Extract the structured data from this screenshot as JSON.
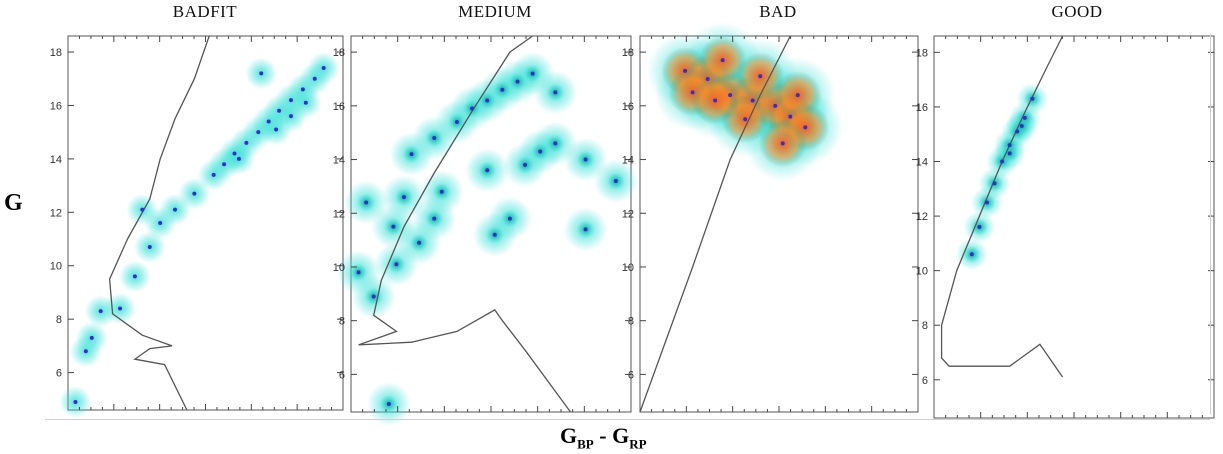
{
  "chart_data": {
    "type": "scatter",
    "ylabel": "G",
    "xlabel_main": "G",
    "xlabel_sub1": "BP",
    "xlabel_sep": " - ",
    "xlabel_sub2": "RP",
    "ylim": [
      18.6,
      4.6
    ],
    "yticks": [
      "6",
      "8",
      "10",
      "12",
      "14",
      "16",
      "18"
    ],
    "y_inverted": true,
    "colors": {
      "density_low": "#35e0d6",
      "density_mid": "#0aa39a",
      "density_high": "#ff5a1a",
      "points": "#3a2bd0",
      "isochrone": "#555555"
    },
    "panels": [
      {
        "title": "BADFIT",
        "points": [
          [
            0.05,
            4.9
          ],
          [
            0.12,
            6.8
          ],
          [
            0.16,
            7.3
          ],
          [
            0.22,
            8.3
          ],
          [
            0.35,
            8.4
          ],
          [
            0.45,
            9.6
          ],
          [
            0.5,
            12.1
          ],
          [
            0.55,
            10.7
          ],
          [
            0.62,
            11.6
          ],
          [
            0.72,
            12.1
          ],
          [
            0.85,
            12.7
          ],
          [
            0.98,
            13.4
          ],
          [
            1.05,
            13.8
          ],
          [
            1.12,
            14.2
          ],
          [
            1.2,
            14.6
          ],
          [
            1.28,
            15.0
          ],
          [
            1.35,
            15.4
          ],
          [
            1.42,
            15.8
          ],
          [
            1.5,
            16.2
          ],
          [
            1.58,
            16.6
          ],
          [
            1.66,
            17.0
          ],
          [
            1.72,
            17.4
          ],
          [
            1.3,
            17.2
          ],
          [
            1.15,
            14.0
          ],
          [
            1.4,
            15.1
          ],
          [
            1.5,
            15.6
          ],
          [
            1.6,
            16.1
          ]
        ],
        "isochrone": [
          [
            0.8,
            4.6
          ],
          [
            0.65,
            6.3
          ],
          [
            0.45,
            6.5
          ],
          [
            0.55,
            6.9
          ],
          [
            0.7,
            7.0
          ],
          [
            0.5,
            7.4
          ],
          [
            0.3,
            8.2
          ],
          [
            0.28,
            9.5
          ],
          [
            0.4,
            11.0
          ],
          [
            0.55,
            12.5
          ],
          [
            0.62,
            14.0
          ],
          [
            0.72,
            15.5
          ],
          [
            0.85,
            17.0
          ],
          [
            0.95,
            18.6
          ]
        ],
        "isochrone_xlim": [
          0.0,
          1.85
        ]
      },
      {
        "title": "MEDIUM",
        "points": [
          [
            0.25,
            4.9
          ],
          [
            0.15,
            8.9
          ],
          [
            0.05,
            9.8
          ],
          [
            0.3,
            10.1
          ],
          [
            0.45,
            10.9
          ],
          [
            0.28,
            11.5
          ],
          [
            0.55,
            11.8
          ],
          [
            0.1,
            12.4
          ],
          [
            0.35,
            12.6
          ],
          [
            0.6,
            12.8
          ],
          [
            0.95,
            11.2
          ],
          [
            1.05,
            11.8
          ],
          [
            0.9,
            13.6
          ],
          [
            1.15,
            13.8
          ],
          [
            1.25,
            14.3
          ],
          [
            1.35,
            14.6
          ],
          [
            0.4,
            14.2
          ],
          [
            0.55,
            14.8
          ],
          [
            0.7,
            15.4
          ],
          [
            0.8,
            15.9
          ],
          [
            0.9,
            16.2
          ],
          [
            1.0,
            16.6
          ],
          [
            1.1,
            16.9
          ],
          [
            1.2,
            17.2
          ],
          [
            1.35,
            16.5
          ],
          [
            1.55,
            11.4
          ],
          [
            1.75,
            13.2
          ],
          [
            1.55,
            14.0
          ]
        ],
        "isochrone": [
          [
            1.45,
            4.6
          ],
          [
            1.15,
            6.9
          ],
          [
            1.0,
            8.0
          ],
          [
            0.95,
            8.4
          ],
          [
            0.7,
            7.6
          ],
          [
            0.4,
            7.2
          ],
          [
            0.05,
            7.1
          ],
          [
            0.3,
            7.6
          ],
          [
            0.15,
            8.2
          ],
          [
            0.2,
            9.5
          ],
          [
            0.35,
            11.5
          ],
          [
            0.55,
            13.5
          ],
          [
            0.8,
            15.8
          ],
          [
            1.05,
            18.0
          ],
          [
            1.2,
            18.6
          ]
        ],
        "isochrone_xlim": [
          0.0,
          1.85
        ]
      },
      {
        "title": "BAD",
        "points": [
          [
            0.3,
            17.3
          ],
          [
            0.45,
            17.0
          ],
          [
            0.6,
            16.4
          ],
          [
            0.75,
            16.2
          ],
          [
            0.9,
            16.0
          ],
          [
            1.0,
            15.6
          ],
          [
            1.05,
            16.4
          ],
          [
            0.55,
            17.7
          ],
          [
            0.35,
            16.5
          ],
          [
            0.8,
            17.1
          ],
          [
            1.1,
            15.2
          ],
          [
            0.95,
            14.6
          ],
          [
            0.7,
            15.5
          ],
          [
            0.5,
            16.2
          ]
        ],
        "isochrone": [
          [
            0.0,
            4.6
          ],
          [
            0.35,
            10.0
          ],
          [
            0.6,
            14.0
          ],
          [
            0.8,
            16.4
          ],
          [
            1.0,
            18.6
          ]
        ],
        "isochrone_xlim": [
          0.0,
          1.85
        ]
      },
      {
        "title": "GOOD",
        "points": [
          [
            0.35,
            12.5
          ],
          [
            0.4,
            13.2
          ],
          [
            0.45,
            14.0
          ],
          [
            0.5,
            14.6
          ],
          [
            0.55,
            15.1
          ],
          [
            0.6,
            15.6
          ],
          [
            0.3,
            11.6
          ],
          [
            0.25,
            10.6
          ],
          [
            0.65,
            16.3
          ],
          [
            0.5,
            14.3
          ],
          [
            0.58,
            15.3
          ]
        ],
        "isochrone": [
          [
            0.85,
            6.1
          ],
          [
            0.7,
            7.3
          ],
          [
            0.5,
            6.5
          ],
          [
            0.1,
            6.5
          ],
          [
            0.05,
            6.8
          ],
          [
            0.05,
            8.0
          ],
          [
            0.15,
            10.0
          ],
          [
            0.3,
            12.0
          ],
          [
            0.45,
            14.0
          ],
          [
            0.6,
            15.8
          ],
          [
            0.75,
            17.5
          ],
          [
            0.85,
            18.6
          ]
        ],
        "isochrone_xlim": [
          0.0,
          1.85
        ]
      }
    ]
  }
}
